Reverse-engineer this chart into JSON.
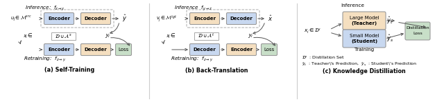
{
  "bg_color": "#ffffff",
  "encoder_color": "#c8d8f0",
  "decoder_color": "#f5dfc0",
  "loss_color": "#c8dfc8",
  "box_edge_color": "#999999",
  "dashed_box_color": "#aaaaaa",
  "arrow_color": "#555555",
  "title_a": "(a) Self-Training",
  "title_b": "(b) Back-Translation",
  "title_c": "(c) Knowledge Distilliation"
}
